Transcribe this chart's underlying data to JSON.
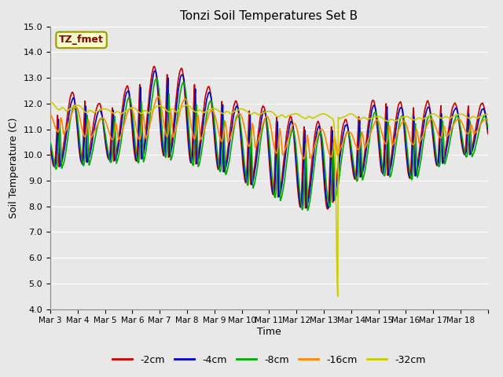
{
  "title": "Tonzi Soil Temperatures Set B",
  "xlabel": "Time",
  "ylabel": "Soil Temperature (C)",
  "annotation": "TZ_fmet",
  "ylim": [
    4.0,
    15.0
  ],
  "yticks": [
    4.0,
    5.0,
    6.0,
    7.0,
    8.0,
    9.0,
    10.0,
    11.0,
    12.0,
    13.0,
    14.0,
    15.0
  ],
  "xtick_labels": [
    "Mar 3",
    "Mar 4",
    "Mar 5",
    "Mar 6",
    "Mar 7",
    "Mar 8",
    "Mar 9",
    "Mar 10",
    "Mar 11",
    "Mar 12",
    "Mar 13",
    "Mar 14",
    "Mar 15",
    "Mar 16",
    "Mar 17",
    "Mar 18"
  ],
  "series_labels": [
    "-2cm",
    "-4cm",
    "-8cm",
    "-16cm",
    "-32cm"
  ],
  "series_colors": [
    "#cc0000",
    "#0000cc",
    "#00aa00",
    "#ff8800",
    "#cccc00"
  ],
  "series_linewidths": [
    1.2,
    1.2,
    1.2,
    1.2,
    1.2
  ],
  "background_color": "#e8e8e8",
  "plot_bg_color": "#e8e8e8",
  "grid_color": "#ffffff",
  "n_points": 960,
  "n_days": 16
}
